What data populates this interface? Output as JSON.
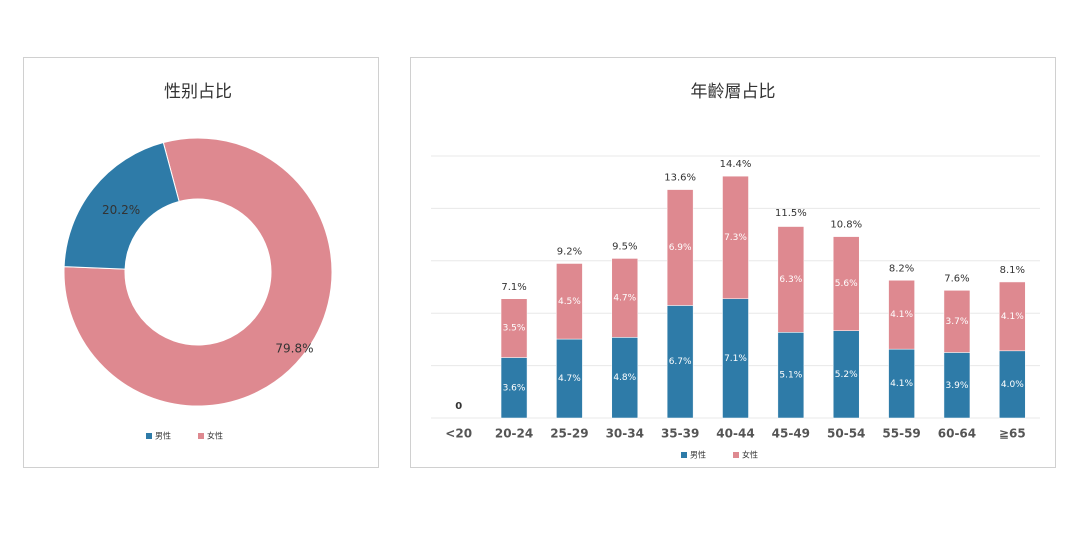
{
  "chart_data": [
    {
      "type": "pie",
      "title": "性别占比",
      "hole": true,
      "categories": [
        "男性",
        "女性"
      ],
      "values": [
        20.2,
        79.8
      ],
      "value_labels": [
        "20.2%",
        "79.8%"
      ],
      "colors": [
        "#2e7ba8",
        "#de8990"
      ],
      "legend": "bottom"
    },
    {
      "type": "stacked-bar",
      "title": "年齡層占比",
      "categories": [
        "<20",
        "20-24",
        "25-29",
        "30-34",
        "35-39",
        "40-44",
        "45-49",
        "50-54",
        "55-59",
        "60-64",
        "≧65"
      ],
      "series": [
        {
          "name": "男性",
          "color": "#2e7ba8",
          "values": [
            0,
            3.6,
            4.7,
            4.8,
            6.7,
            7.1,
            5.1,
            5.2,
            4.1,
            3.9,
            4.0
          ],
          "value_labels": [
            null,
            "3.6%",
            "4.7%",
            "4.8%",
            "6.7%",
            "7.1%",
            "5.1%",
            "5.2%",
            "4.1%",
            "3.9%",
            "4.0%"
          ]
        },
        {
          "name": "女性",
          "color": "#de8990",
          "values": [
            0,
            3.5,
            4.5,
            4.7,
            6.9,
            7.3,
            6.3,
            5.6,
            4.1,
            3.7,
            4.1
          ],
          "value_labels": [
            null,
            "3.5%",
            "4.5%",
            "4.7%",
            "6.9%",
            "7.3%",
            "6.3%",
            "5.6%",
            "4.1%",
            "3.7%",
            "4.1%"
          ]
        }
      ],
      "totals": [
        0,
        7.1,
        9.2,
        9.5,
        13.6,
        14.4,
        11.5,
        10.8,
        8.2,
        7.6,
        8.1
      ],
      "total_labels": [
        "0",
        "7.1%",
        "9.2%",
        "9.5%",
        "13.6%",
        "14.4%",
        "11.5%",
        "10.8%",
        "8.2%",
        "7.6%",
        "8.1%"
      ],
      "ylim": [
        0,
        15.6
      ],
      "grid": true,
      "legend": "bottom"
    }
  ]
}
